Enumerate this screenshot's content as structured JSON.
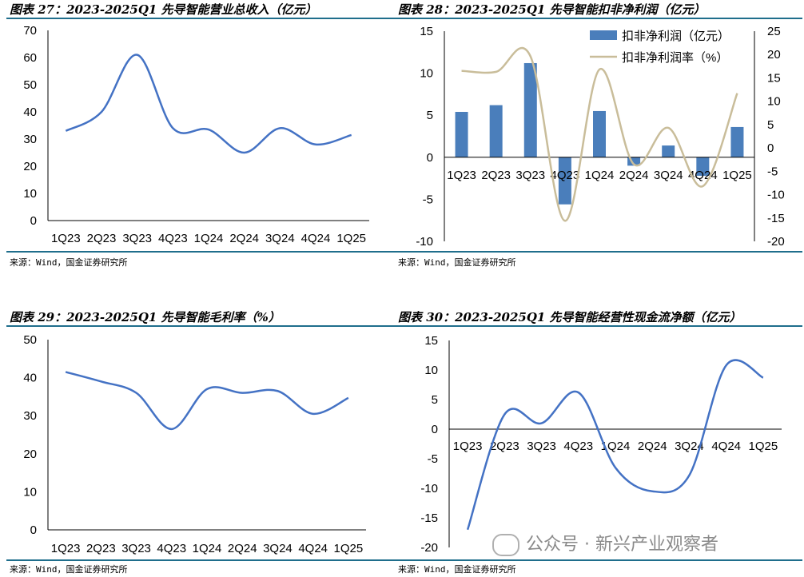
{
  "panels": [
    {
      "title": "图表 27：2023-2025Q1 先导智能营业总收入（亿元）",
      "source": "来源：Wind，国金证券研究所"
    },
    {
      "title": "图表 28：2023-2025Q1 先导智能扣非净利润（亿元）",
      "source": "来源：Wind，国金证券研究所"
    },
    {
      "title": "图表 29：2023-2025Q1 先导智能毛利率（%）",
      "source": "来源：Wind，国金证券研究所"
    },
    {
      "title": "图表 30：2023-2025Q1 先导智能经营性现金流净额（亿元）",
      "source": "来源：Wind，国金证券研究所"
    }
  ],
  "watermark": {
    "text": "公众号 · 新兴产业观察者",
    "icon": "wechat-icon"
  },
  "colors": {
    "line_blue": "#4472c4",
    "bar_blue": "#4a7ebb",
    "line_beige": "#c9bd9a",
    "rule": "#1f6e8c"
  },
  "chart_data": [
    {
      "type": "line",
      "title": "图表 27：2023-2025Q1 先导智能营业总收入（亿元）",
      "categories": [
        "1Q23",
        "2Q23",
        "3Q23",
        "4Q23",
        "1Q24",
        "2Q24",
        "3Q24",
        "4Q24",
        "1Q25"
      ],
      "series": [
        {
          "values": [
            33,
            40,
            61,
            34,
            33.5,
            25,
            34,
            28,
            31.5
          ]
        }
      ],
      "ylim": [
        0,
        70
      ],
      "yticks": [
        0,
        10,
        20,
        30,
        40,
        50,
        60,
        70
      ],
      "grid": false
    },
    {
      "type": "bar+line",
      "title": "图表 28：2023-2025Q1 先导智能扣非净利润（亿元）",
      "categories": [
        "1Q23",
        "2Q23",
        "3Q23",
        "4Q23",
        "1Q24",
        "2Q24",
        "3Q24",
        "4Q24",
        "1Q25"
      ],
      "series": [
        {
          "name": "扣非净利润（亿元）",
          "type": "bar",
          "axis": "left",
          "values": [
            5.4,
            6.2,
            11.2,
            -5.6,
            5.5,
            -1.0,
            1.4,
            -2.2,
            3.6
          ]
        },
        {
          "name": "扣非净利润率（%）",
          "type": "line",
          "axis": "right",
          "values": [
            16.5,
            16.3,
            19.6,
            -15.6,
            16.8,
            -3.5,
            4.3,
            -8.2,
            11.7
          ]
        }
      ],
      "ylim_left": [
        -10,
        15
      ],
      "yticks_left": [
        -10,
        -5,
        0,
        5,
        10,
        15
      ],
      "ylim_right": [
        -20,
        25
      ],
      "yticks_right": [
        -20,
        -15,
        -10,
        -5,
        0,
        5,
        10,
        15,
        20,
        25
      ],
      "legend": "top-right",
      "grid": false
    },
    {
      "type": "line",
      "title": "图表 29：2023-2025Q1 先导智能毛利率（%）",
      "categories": [
        "1Q23",
        "2Q23",
        "3Q23",
        "4Q23",
        "1Q24",
        "2Q24",
        "3Q24",
        "4Q24",
        "1Q25"
      ],
      "series": [
        {
          "values": [
            41.5,
            39.0,
            36.0,
            26.5,
            37.0,
            36.0,
            36.5,
            30.5,
            34.7
          ]
        }
      ],
      "ylim": [
        0,
        50
      ],
      "yticks": [
        0,
        10,
        20,
        30,
        40,
        50
      ],
      "grid": false
    },
    {
      "type": "line",
      "title": "图表 30：2023-2025Q1 先导智能经营性现金流净额（亿元）",
      "categories": [
        "1Q23",
        "2Q23",
        "3Q23",
        "4Q23",
        "1Q24",
        "2Q24",
        "3Q24",
        "4Q24",
        "1Q25"
      ],
      "series": [
        {
          "values": [
            -17.0,
            2.5,
            1.0,
            6.2,
            -6.5,
            -10.5,
            -7.8,
            10.8,
            8.7
          ]
        }
      ],
      "ylim": [
        -20,
        15
      ],
      "yticks": [
        -20,
        -15,
        -10,
        -5,
        0,
        5,
        10,
        15
      ],
      "grid": false
    }
  ]
}
